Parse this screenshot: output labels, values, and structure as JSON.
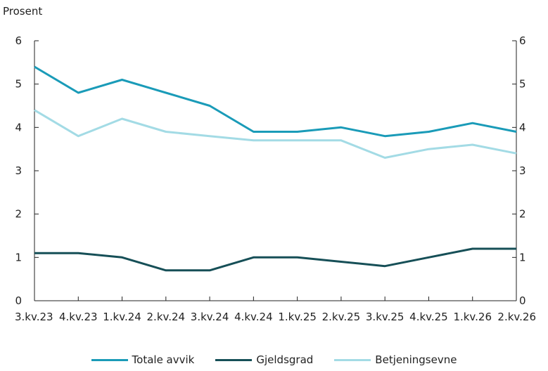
{
  "chart_data": {
    "type": "line",
    "ylabel": "Prosent",
    "categories": [
      "3.kv.23",
      "4.kv.23",
      "1.kv.24",
      "2.kv.24",
      "3.kv.24",
      "4.kv.24",
      "1.kv.25",
      "2.kv.25",
      "3.kv.25",
      "4.kv.25",
      "1.kv.26",
      "2.kv.26"
    ],
    "ylim": [
      0,
      6
    ],
    "yticks": [
      "0",
      "1",
      "2",
      "3",
      "4",
      "5",
      "6"
    ],
    "grid": false,
    "legend_position": "bottom",
    "series": [
      {
        "name": "Totale avvik",
        "color": "#1a9bb8",
        "values": [
          5.4,
          4.8,
          5.1,
          4.8,
          4.5,
          3.9,
          3.9,
          4.0,
          3.8,
          3.9,
          4.1,
          3.9
        ]
      },
      {
        "name": "Gjeldsgrad",
        "color": "#164f57",
        "values": [
          1.1,
          1.1,
          1.0,
          0.7,
          0.7,
          1.0,
          1.0,
          0.9,
          0.8,
          1.0,
          1.2,
          1.2
        ]
      },
      {
        "name": "Betjeningsevne",
        "color": "#a3dbe5",
        "values": [
          4.4,
          3.8,
          4.2,
          3.9,
          3.8,
          3.7,
          3.7,
          3.7,
          3.3,
          3.5,
          3.6,
          3.4
        ]
      }
    ]
  }
}
